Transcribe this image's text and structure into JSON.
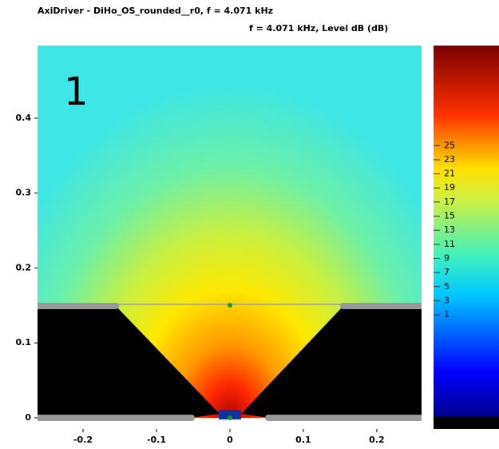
{
  "chart_data": {
    "type": "contour",
    "title": "AxiDriver - DiHo_OS_rounded__r0,    f = 4.071 kHz",
    "subtitle": "f = 4.071 kHz, Level dB  (dB)",
    "annotation": "1",
    "xlim": [
      -0.262,
      0.261
    ],
    "xticks": [
      -0.2,
      -0.1,
      0,
      0.1,
      0.2
    ],
    "ylim": [
      -0.015,
      0.497
    ],
    "yticks": [
      0,
      0.1,
      0.2,
      0.3,
      0.4
    ],
    "colorbar_lim": [
      -15.2,
      39.2
    ],
    "colorbar_ticks": [
      1,
      3,
      5,
      7,
      9,
      11,
      13,
      15,
      17,
      19,
      21,
      23,
      25
    ]
  }
}
